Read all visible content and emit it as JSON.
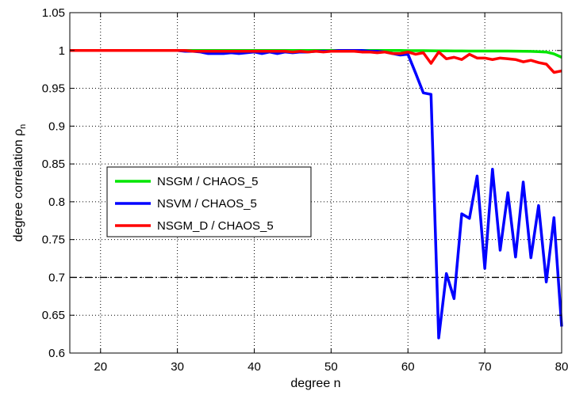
{
  "chart_data": {
    "type": "line",
    "xlabel": "degree n",
    "ylabel": "degree correlation ρ",
    "ylabel_sub": "n",
    "xlim": [
      16,
      80
    ],
    "ylim": [
      0.6,
      1.05
    ],
    "xticks": [
      20,
      30,
      40,
      50,
      60,
      70,
      80
    ],
    "yticks": [
      0.6,
      0.65,
      0.7,
      0.75,
      0.8,
      0.85,
      0.9,
      0.95,
      1,
      1.05
    ],
    "ytick_labels": [
      "0.6",
      "0.65",
      "0.7",
      "0.75",
      "0.8",
      "0.85",
      "0.9",
      "0.95",
      "1",
      "1.05"
    ],
    "grid": true,
    "legend_position": "center-left",
    "threshold": {
      "y": 0.7,
      "style": "dash-dot",
      "color": "#000000"
    },
    "x": [
      16,
      17,
      18,
      19,
      20,
      21,
      22,
      23,
      24,
      25,
      26,
      27,
      28,
      29,
      30,
      31,
      32,
      33,
      34,
      35,
      36,
      37,
      38,
      39,
      40,
      41,
      42,
      43,
      44,
      45,
      46,
      47,
      48,
      49,
      50,
      51,
      52,
      53,
      54,
      55,
      56,
      57,
      58,
      59,
      60,
      61,
      62,
      63,
      64,
      65,
      66,
      67,
      68,
      69,
      70,
      71,
      72,
      73,
      74,
      75,
      76,
      77,
      78,
      79,
      80
    ],
    "series": [
      {
        "name": "NSGM / CHAOS_5",
        "color": "#00e600",
        "values": [
          1,
          1,
          1,
          1,
          1,
          1,
          1,
          1,
          1,
          1,
          1,
          1,
          1,
          1,
          1,
          1,
          1,
          1,
          1,
          1,
          1,
          1,
          1,
          1,
          1,
          1,
          1,
          1,
          1,
          1,
          1,
          1,
          1,
          1,
          1,
          1,
          1,
          1,
          1,
          1,
          1,
          1,
          1,
          1,
          0.9998,
          0.9998,
          0.9997,
          0.9996,
          0.9995,
          0.9995,
          0.9994,
          0.9994,
          0.9993,
          0.9993,
          0.9993,
          0.9992,
          0.9992,
          0.9992,
          0.9991,
          0.999,
          0.9988,
          0.9985,
          0.998,
          0.9955,
          0.991
        ]
      },
      {
        "name": "NSVM / CHAOS_5",
        "color": "#0000ff",
        "values": [
          1,
          1,
          1,
          1,
          1,
          1,
          1,
          1,
          1,
          1,
          1,
          1,
          1,
          1,
          1,
          0.999,
          0.999,
          0.998,
          0.996,
          0.996,
          0.996,
          0.997,
          0.996,
          0.997,
          0.998,
          0.996,
          0.998,
          0.996,
          0.998,
          0.997,
          0.998,
          0.998,
          0.999,
          0.999,
          0.999,
          1,
          1,
          1,
          1,
          0.999,
          0.999,
          0.998,
          0.996,
          0.994,
          0.995,
          0.97,
          0.944,
          0.942,
          0.62,
          0.705,
          0.672,
          0.784,
          0.778,
          0.834,
          0.712,
          0.843,
          0.736,
          0.812,
          0.727,
          0.826,
          0.726,
          0.795,
          0.694,
          0.779,
          0.635
        ]
      },
      {
        "name": "NSGM_D / CHAOS_5",
        "color": "#ff0000",
        "values": [
          1,
          1,
          1,
          1,
          1,
          1,
          1,
          1,
          1,
          1,
          1,
          1,
          1,
          1,
          1,
          1,
          0.999,
          0.999,
          0.999,
          0.999,
          0.999,
          0.999,
          0.999,
          0.999,
          0.999,
          0.999,
          0.999,
          0.999,
          0.999,
          0.998,
          0.999,
          0.998,
          0.999,
          0.998,
          0.999,
          0.999,
          0.999,
          0.999,
          0.998,
          0.998,
          0.997,
          0.998,
          0.996,
          0.996,
          0.998,
          0.995,
          0.997,
          0.983,
          0.998,
          0.989,
          0.991,
          0.988,
          0.995,
          0.99,
          0.99,
          0.988,
          0.99,
          0.989,
          0.988,
          0.985,
          0.987,
          0.984,
          0.982,
          0.971,
          0.973
        ]
      }
    ]
  }
}
